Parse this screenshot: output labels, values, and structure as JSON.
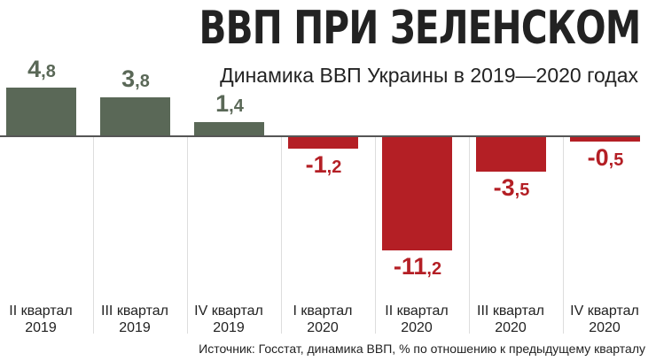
{
  "title": "ВВП ПРИ ЗЕЛЕНСКОМ",
  "subtitle": "Динамика ВВП Украины в 2019—2020 годах",
  "source": "Источник: Госстат, динамика ВВП, % по отношению к предыдущему кварталу",
  "colors": {
    "positive": "#5a6857",
    "negative": "#b41f25",
    "baseline": "#555555",
    "grid": "#dddddd"
  },
  "bars": [
    {
      "q": "II квартал",
      "year": "2019",
      "int": "4",
      "dec": ",8"
    },
    {
      "q": "III квартал",
      "year": "2019",
      "int": "3",
      "dec": ",8"
    },
    {
      "q": "IV квартал",
      "year": "2019",
      "int": "1",
      "dec": ",4"
    },
    {
      "q": "I квартал",
      "year": "2020",
      "int": "-1",
      "dec": ",2"
    },
    {
      "q": "II квартал",
      "year": "2020",
      "int": "-11",
      "dec": ",2"
    },
    {
      "q": "III квартал",
      "year": "2020",
      "int": "-3",
      "dec": ",5"
    },
    {
      "q": "IV квартал",
      "year": "2020",
      "int": "-0",
      "dec": ",5"
    }
  ],
  "chart_data": {
    "type": "bar",
    "title": "ВВП ПРИ ЗЕЛЕНСКОМ",
    "subtitle": "Динамика ВВП Украины в 2019—2020 годах",
    "categories": [
      "II квартал 2019",
      "III квартал 2019",
      "IV квартал 2019",
      "I квартал 2020",
      "II квартал 2020",
      "III квартал 2020",
      "IV квартал 2020"
    ],
    "values": [
      4.8,
      3.8,
      1.4,
      -1.2,
      -11.2,
      -3.5,
      -0.5
    ],
    "xlabel": "",
    "ylabel": "% по отношению к предыдущему кварталу",
    "ylim": [
      -11.2,
      4.8
    ],
    "grid": false,
    "legend": null,
    "note": "Источник: Госстат, динамика ВВП, % по отношению к предыдущему кварталу"
  }
}
